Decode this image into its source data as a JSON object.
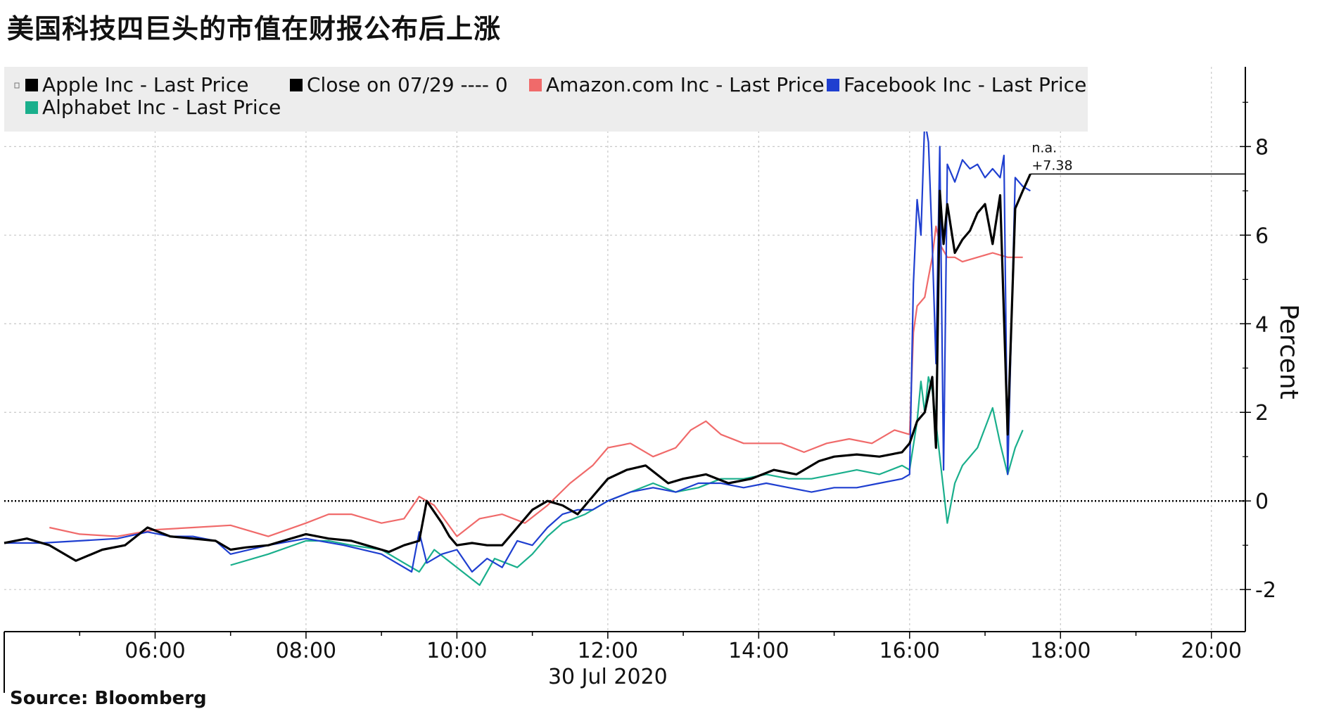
{
  "title": "美国科技四巨头的市值在财报公布后上涨",
  "source": "Source: Bloomberg",
  "chart_data": {
    "type": "line",
    "title": "美国科技四巨头的市值在财报公布后上涨",
    "xlabel": "30 Jul 2020",
    "ylabel": "Percent",
    "xlim": [
      4.0,
      20.45
    ],
    "ylim": [
      -2.95,
      9.8
    ],
    "x_ticks": [
      {
        "h": 6,
        "label": "06:00"
      },
      {
        "h": 8,
        "label": "08:00"
      },
      {
        "h": 10,
        "label": "10:00"
      },
      {
        "h": 12,
        "label": "12:00"
      },
      {
        "h": 14,
        "label": "14:00"
      },
      {
        "h": 16,
        "label": "16:00"
      },
      {
        "h": 18,
        "label": "18:00"
      },
      {
        "h": 20,
        "label": "20:00"
      }
    ],
    "y_ticks": [
      {
        "v": 8,
        "label": "8"
      },
      {
        "v": 6,
        "label": "6"
      },
      {
        "v": 4,
        "label": "4"
      },
      {
        "v": 2,
        "label": "2"
      },
      {
        "v": 0,
        "label": "0"
      },
      {
        "v": -2,
        "label": "-2"
      }
    ],
    "grid": true,
    "legend_position": "top-left",
    "legend": [
      {
        "label": "Apple Inc - Last Price",
        "color": "#000000"
      },
      {
        "label": "Close on 07/29 ---- 0",
        "color": "#000000"
      },
      {
        "label": "Amazon.com Inc - Last Price",
        "color": "#f06a6a"
      },
      {
        "label": "Facebook Inc - Last Price",
        "color": "#1f3fd0"
      },
      {
        "label": "Alphabet Inc - Last Price",
        "color": "#1aaf8c"
      }
    ],
    "reference_line": {
      "label": "Close on 07/29",
      "value": 0
    },
    "end_annotation": {
      "line1": "n.a.",
      "line2": "+7.38",
      "value": 7.38
    },
    "series": [
      {
        "name": "Apple Inc - Last Price",
        "color": "#000000",
        "x": [
          4.0,
          4.3,
          4.6,
          4.95,
          5.3,
          5.6,
          5.9,
          6.2,
          6.5,
          6.8,
          7.0,
          7.2,
          7.5,
          7.8,
          8.0,
          8.3,
          8.6,
          8.9,
          9.1,
          9.3,
          9.5,
          9.6,
          9.8,
          9.9,
          10.0,
          10.2,
          10.4,
          10.6,
          10.8,
          11.0,
          11.2,
          11.4,
          11.6,
          11.8,
          12.0,
          12.25,
          12.5,
          12.8,
          13.0,
          13.3,
          13.6,
          13.9,
          14.2,
          14.5,
          14.8,
          15.0,
          15.3,
          15.6,
          15.9,
          16.0,
          16.1,
          16.2,
          16.3,
          16.35,
          16.4,
          16.45,
          16.5,
          16.6,
          16.7,
          16.8,
          16.9,
          17.0,
          17.1,
          17.2,
          17.3,
          17.4,
          17.5,
          17.6
        ],
        "values": [
          -0.95,
          -0.85,
          -1.0,
          -1.35,
          -1.1,
          -1.0,
          -0.6,
          -0.8,
          -0.85,
          -0.9,
          -1.1,
          -1.05,
          -1.0,
          -0.85,
          -0.75,
          -0.85,
          -0.9,
          -1.05,
          -1.15,
          -1.0,
          -0.9,
          0.0,
          -0.5,
          -0.8,
          -1.0,
          -0.95,
          -1.0,
          -1.0,
          -0.6,
          -0.2,
          0.0,
          -0.1,
          -0.3,
          0.1,
          0.5,
          0.7,
          0.8,
          0.4,
          0.5,
          0.6,
          0.4,
          0.5,
          0.7,
          0.6,
          0.9,
          1.0,
          1.05,
          1.0,
          1.1,
          1.3,
          1.8,
          2.0,
          2.8,
          1.2,
          7.0,
          5.8,
          6.7,
          5.6,
          5.9,
          6.1,
          6.5,
          6.7,
          5.8,
          6.9,
          1.5,
          6.6,
          7.0,
          7.38
        ]
      },
      {
        "name": "Amazon.com Inc - Last Price",
        "color": "#f06a6a",
        "x": [
          4.6,
          5.0,
          5.5,
          6.0,
          6.5,
          7.0,
          7.5,
          8.0,
          8.3,
          8.6,
          9.0,
          9.3,
          9.5,
          9.7,
          10.0,
          10.3,
          10.6,
          10.9,
          11.2,
          11.5,
          11.8,
          12.0,
          12.3,
          12.6,
          12.9,
          13.1,
          13.3,
          13.5,
          13.8,
          14.0,
          14.3,
          14.6,
          14.9,
          15.2,
          15.5,
          15.8,
          16.0,
          16.05,
          16.1,
          16.2,
          16.3,
          16.35,
          16.4,
          16.5,
          16.6,
          16.7,
          16.9,
          17.1,
          17.3,
          17.5
        ],
        "values": [
          -0.6,
          -0.75,
          -0.8,
          -0.65,
          -0.6,
          -0.55,
          -0.8,
          -0.5,
          -0.3,
          -0.3,
          -0.5,
          -0.4,
          0.1,
          -0.1,
          -0.8,
          -0.4,
          -0.3,
          -0.5,
          -0.1,
          0.4,
          0.8,
          1.2,
          1.3,
          1.0,
          1.2,
          1.6,
          1.8,
          1.5,
          1.3,
          1.3,
          1.3,
          1.1,
          1.3,
          1.4,
          1.3,
          1.6,
          1.5,
          3.8,
          4.4,
          4.6,
          5.5,
          6.2,
          5.8,
          5.5,
          5.5,
          5.4,
          5.5,
          5.6,
          5.5,
          5.5
        ]
      },
      {
        "name": "Facebook Inc - Last Price",
        "color": "#1f3fd0",
        "x": [
          4.0,
          4.5,
          5.0,
          5.5,
          5.9,
          6.2,
          6.5,
          6.8,
          7.0,
          7.5,
          8.0,
          8.5,
          9.0,
          9.4,
          9.5,
          9.6,
          9.8,
          10.0,
          10.2,
          10.4,
          10.6,
          10.8,
          11.0,
          11.2,
          11.4,
          11.6,
          11.8,
          12.0,
          12.3,
          12.6,
          12.9,
          13.2,
          13.5,
          13.8,
          14.1,
          14.4,
          14.7,
          15.0,
          15.3,
          15.6,
          15.9,
          16.0,
          16.05,
          16.1,
          16.15,
          16.2,
          16.25,
          16.3,
          16.35,
          16.4,
          16.45,
          16.5,
          16.6,
          16.7,
          16.8,
          16.9,
          17.0,
          17.1,
          17.2,
          17.25,
          17.3,
          17.4,
          17.5,
          17.6
        ],
        "values": [
          -0.95,
          -0.95,
          -0.9,
          -0.85,
          -0.7,
          -0.8,
          -0.8,
          -0.9,
          -1.2,
          -1.0,
          -0.85,
          -1.0,
          -1.2,
          -1.6,
          -0.7,
          -1.4,
          -1.2,
          -1.1,
          -1.6,
          -1.3,
          -1.5,
          -0.9,
          -1.0,
          -0.6,
          -0.3,
          -0.2,
          -0.2,
          0.0,
          0.2,
          0.3,
          0.2,
          0.4,
          0.4,
          0.3,
          0.4,
          0.3,
          0.2,
          0.3,
          0.3,
          0.4,
          0.5,
          0.6,
          4.9,
          6.8,
          6.0,
          8.6,
          8.1,
          5.8,
          3.1,
          8.0,
          0.7,
          7.6,
          7.2,
          7.7,
          7.5,
          7.6,
          7.3,
          7.5,
          7.3,
          7.8,
          0.6,
          7.3,
          7.1,
          7.0
        ]
      },
      {
        "name": "Alphabet Inc - Last Price",
        "color": "#1aaf8c",
        "x": [
          7.0,
          7.5,
          8.0,
          8.3,
          8.6,
          9.0,
          9.3,
          9.5,
          9.7,
          10.0,
          10.3,
          10.5,
          10.8,
          11.0,
          11.2,
          11.4,
          11.7,
          12.0,
          12.3,
          12.6,
          12.9,
          13.2,
          13.5,
          13.8,
          14.1,
          14.4,
          14.7,
          15.0,
          15.3,
          15.6,
          15.9,
          16.0,
          16.1,
          16.15,
          16.2,
          16.25,
          16.3,
          16.4,
          16.5,
          16.6,
          16.7,
          16.9,
          17.1,
          17.2,
          17.3,
          17.4,
          17.5
        ],
        "values": [
          -1.45,
          -1.2,
          -0.9,
          -0.9,
          -1.0,
          -1.1,
          -1.4,
          -1.6,
          -1.1,
          -1.5,
          -1.9,
          -1.3,
          -1.5,
          -1.2,
          -0.8,
          -0.5,
          -0.3,
          0.0,
          0.2,
          0.4,
          0.2,
          0.3,
          0.5,
          0.5,
          0.6,
          0.5,
          0.5,
          0.6,
          0.7,
          0.6,
          0.8,
          0.7,
          1.8,
          2.7,
          2.0,
          2.8,
          2.5,
          1.0,
          -0.5,
          0.4,
          0.8,
          1.2,
          2.1,
          1.3,
          0.6,
          1.2,
          1.6
        ]
      }
    ]
  }
}
